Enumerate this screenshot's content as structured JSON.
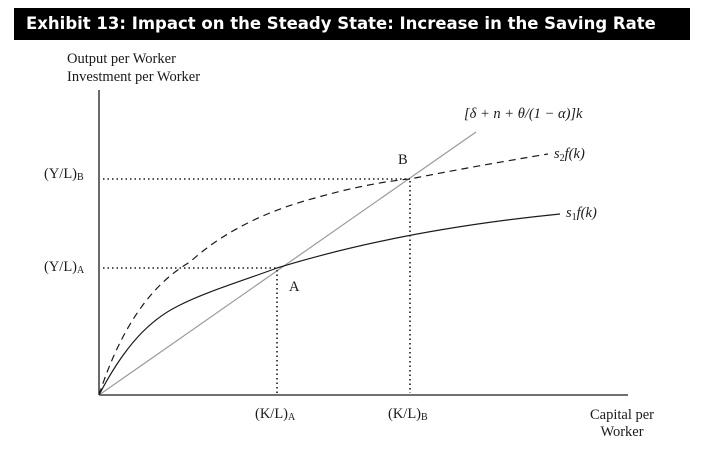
{
  "title": "Exhibit 13: Impact on the Steady State: Increase in the Saving Rate",
  "y_axis": {
    "line1": "Output per Worker",
    "line2": "Investment per Worker"
  },
  "x_axis": {
    "line1": "Capital per",
    "line2": "Worker"
  },
  "y_ticks": {
    "b_main": "(Y/L)",
    "b_sub": "B",
    "a_main": "(Y/L)",
    "a_sub": "A"
  },
  "x_ticks": {
    "a_main": "(K/L)",
    "a_sub": "A",
    "b_main": "(K/L)",
    "b_sub": "B"
  },
  "curves": {
    "s1": {
      "s": "s",
      "sub": "1",
      "rest": "f(k)"
    },
    "s2": {
      "s": "s",
      "sub": "2",
      "rest": "f(k)"
    },
    "line": "[δ + n + θ/(1 − α)]k"
  },
  "points": {
    "a": "A",
    "b": "B"
  },
  "colors": {
    "banner": "#000000",
    "line": "#9a9a9a",
    "curve": "#1a1a1a"
  }
}
